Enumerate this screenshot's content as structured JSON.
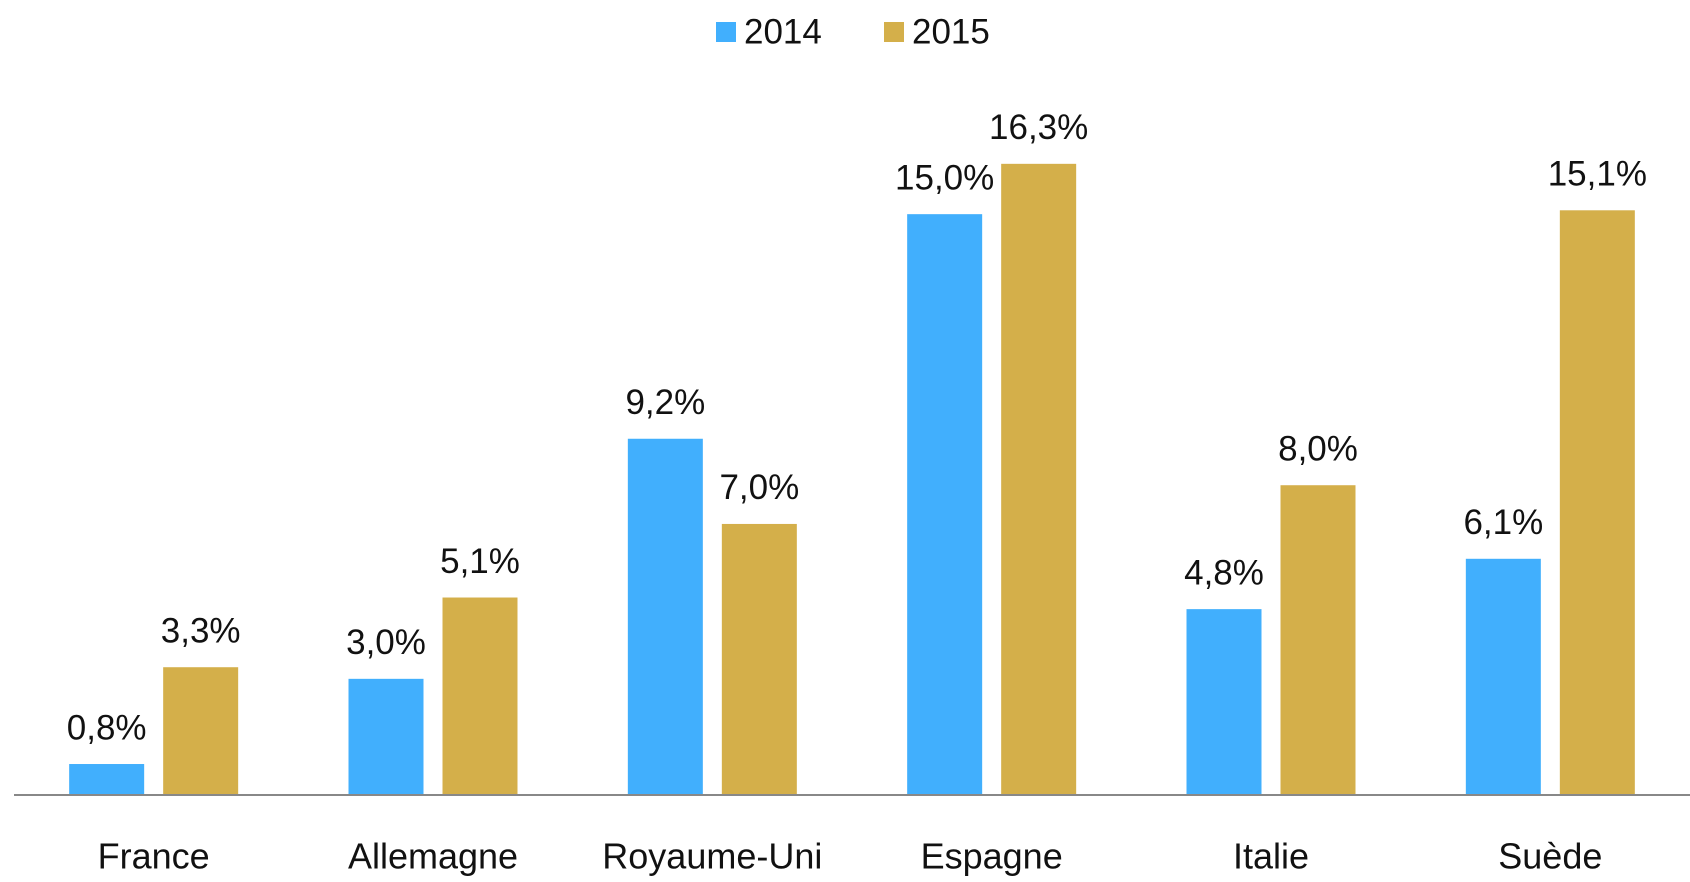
{
  "chart_data": {
    "type": "bar",
    "categories": [
      "France",
      "Allemagne",
      "Royaume-Uni",
      "Espagne",
      "Italie",
      "Suède"
    ],
    "series": [
      {
        "name": "2014",
        "color": "#41affd",
        "values": [
          0.8,
          3.0,
          9.2,
          15.0,
          4.8,
          6.1
        ],
        "value_labels": [
          "0,8%",
          "3,0%",
          "9,2%",
          "15,0%",
          "4,8%",
          "6,1%"
        ]
      },
      {
        "name": "2015",
        "color": "#d4af4a",
        "values": [
          3.3,
          5.1,
          7.0,
          16.3,
          8.0,
          15.1
        ],
        "value_labels": [
          "3,3%",
          "5,1%",
          "7,0%",
          "16,3%",
          "8,0%",
          "15,1%"
        ]
      }
    ],
    "ylim": [
      0,
      18
    ],
    "legend": "top"
  }
}
